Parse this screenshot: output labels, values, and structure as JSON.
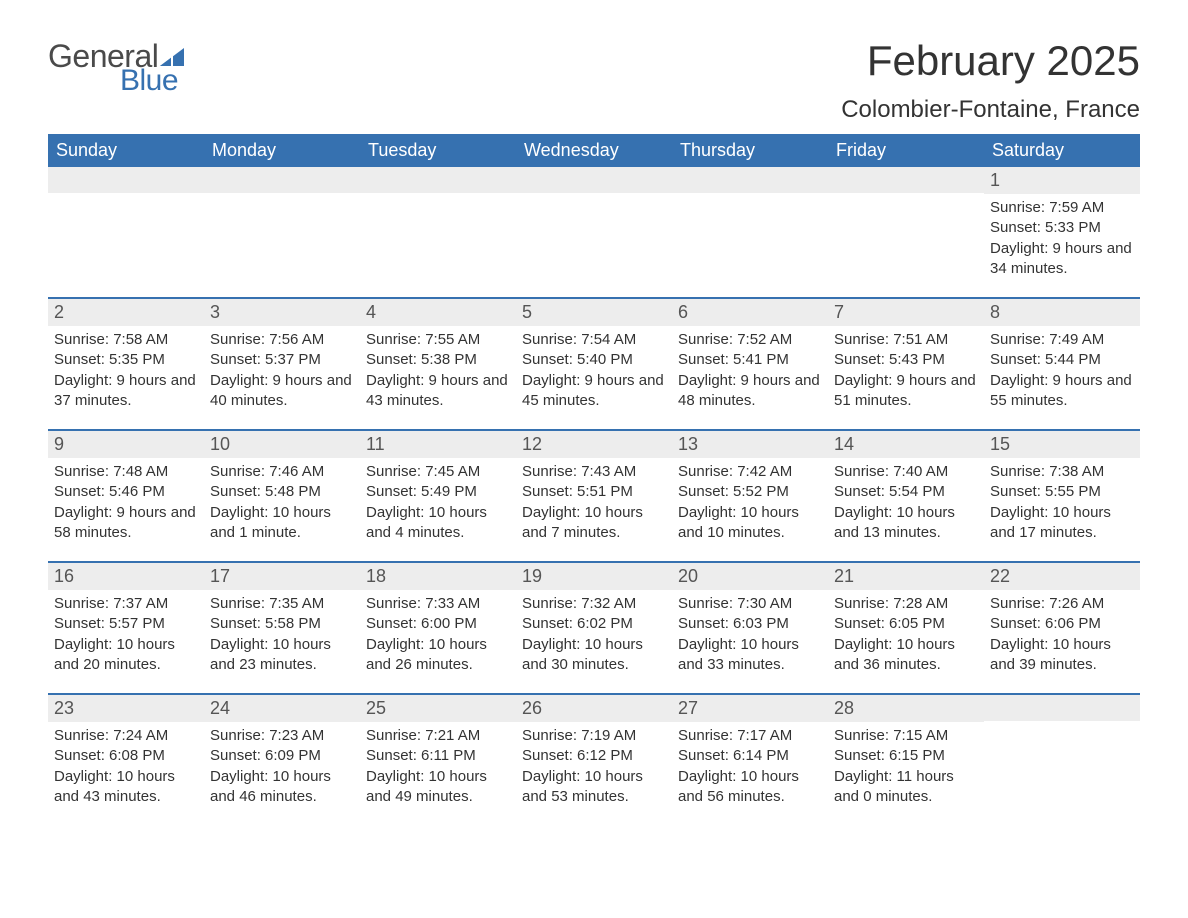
{
  "brand": {
    "word1": "General",
    "word2": "Blue",
    "word1_color": "#4a4a4a",
    "word2_color": "#3671b0",
    "flag_color": "#3671b0"
  },
  "title": "February 2025",
  "location": "Colombier-Fontaine, France",
  "colors": {
    "header_bg": "#3671b0",
    "header_text": "#ffffff",
    "band_bg": "#ededed",
    "text": "#333333",
    "rule": "#3671b0",
    "page_bg": "#ffffff"
  },
  "typography": {
    "title_fontsize": 42,
    "location_fontsize": 24,
    "dow_fontsize": 18,
    "daynum_fontsize": 18,
    "details_fontsize": 15
  },
  "days_of_week": [
    "Sunday",
    "Monday",
    "Tuesday",
    "Wednesday",
    "Thursday",
    "Friday",
    "Saturday"
  ],
  "weeks": [
    [
      {
        "blank": true
      },
      {
        "blank": true
      },
      {
        "blank": true
      },
      {
        "blank": true
      },
      {
        "blank": true
      },
      {
        "blank": true
      },
      {
        "day": "1",
        "sunrise": "Sunrise: 7:59 AM",
        "sunset": "Sunset: 5:33 PM",
        "daylight": "Daylight: 9 hours and 34 minutes."
      }
    ],
    [
      {
        "day": "2",
        "sunrise": "Sunrise: 7:58 AM",
        "sunset": "Sunset: 5:35 PM",
        "daylight": "Daylight: 9 hours and 37 minutes."
      },
      {
        "day": "3",
        "sunrise": "Sunrise: 7:56 AM",
        "sunset": "Sunset: 5:37 PM",
        "daylight": "Daylight: 9 hours and 40 minutes."
      },
      {
        "day": "4",
        "sunrise": "Sunrise: 7:55 AM",
        "sunset": "Sunset: 5:38 PM",
        "daylight": "Daylight: 9 hours and 43 minutes."
      },
      {
        "day": "5",
        "sunrise": "Sunrise: 7:54 AM",
        "sunset": "Sunset: 5:40 PM",
        "daylight": "Daylight: 9 hours and 45 minutes."
      },
      {
        "day": "6",
        "sunrise": "Sunrise: 7:52 AM",
        "sunset": "Sunset: 5:41 PM",
        "daylight": "Daylight: 9 hours and 48 minutes."
      },
      {
        "day": "7",
        "sunrise": "Sunrise: 7:51 AM",
        "sunset": "Sunset: 5:43 PM",
        "daylight": "Daylight: 9 hours and 51 minutes."
      },
      {
        "day": "8",
        "sunrise": "Sunrise: 7:49 AM",
        "sunset": "Sunset: 5:44 PM",
        "daylight": "Daylight: 9 hours and 55 minutes."
      }
    ],
    [
      {
        "day": "9",
        "sunrise": "Sunrise: 7:48 AM",
        "sunset": "Sunset: 5:46 PM",
        "daylight": "Daylight: 9 hours and 58 minutes."
      },
      {
        "day": "10",
        "sunrise": "Sunrise: 7:46 AM",
        "sunset": "Sunset: 5:48 PM",
        "daylight": "Daylight: 10 hours and 1 minute."
      },
      {
        "day": "11",
        "sunrise": "Sunrise: 7:45 AM",
        "sunset": "Sunset: 5:49 PM",
        "daylight": "Daylight: 10 hours and 4 minutes."
      },
      {
        "day": "12",
        "sunrise": "Sunrise: 7:43 AM",
        "sunset": "Sunset: 5:51 PM",
        "daylight": "Daylight: 10 hours and 7 minutes."
      },
      {
        "day": "13",
        "sunrise": "Sunrise: 7:42 AM",
        "sunset": "Sunset: 5:52 PM",
        "daylight": "Daylight: 10 hours and 10 minutes."
      },
      {
        "day": "14",
        "sunrise": "Sunrise: 7:40 AM",
        "sunset": "Sunset: 5:54 PM",
        "daylight": "Daylight: 10 hours and 13 minutes."
      },
      {
        "day": "15",
        "sunrise": "Sunrise: 7:38 AM",
        "sunset": "Sunset: 5:55 PM",
        "daylight": "Daylight: 10 hours and 17 minutes."
      }
    ],
    [
      {
        "day": "16",
        "sunrise": "Sunrise: 7:37 AM",
        "sunset": "Sunset: 5:57 PM",
        "daylight": "Daylight: 10 hours and 20 minutes."
      },
      {
        "day": "17",
        "sunrise": "Sunrise: 7:35 AM",
        "sunset": "Sunset: 5:58 PM",
        "daylight": "Daylight: 10 hours and 23 minutes."
      },
      {
        "day": "18",
        "sunrise": "Sunrise: 7:33 AM",
        "sunset": "Sunset: 6:00 PM",
        "daylight": "Daylight: 10 hours and 26 minutes."
      },
      {
        "day": "19",
        "sunrise": "Sunrise: 7:32 AM",
        "sunset": "Sunset: 6:02 PM",
        "daylight": "Daylight: 10 hours and 30 minutes."
      },
      {
        "day": "20",
        "sunrise": "Sunrise: 7:30 AM",
        "sunset": "Sunset: 6:03 PM",
        "daylight": "Daylight: 10 hours and 33 minutes."
      },
      {
        "day": "21",
        "sunrise": "Sunrise: 7:28 AM",
        "sunset": "Sunset: 6:05 PM",
        "daylight": "Daylight: 10 hours and 36 minutes."
      },
      {
        "day": "22",
        "sunrise": "Sunrise: 7:26 AM",
        "sunset": "Sunset: 6:06 PM",
        "daylight": "Daylight: 10 hours and 39 minutes."
      }
    ],
    [
      {
        "day": "23",
        "sunrise": "Sunrise: 7:24 AM",
        "sunset": "Sunset: 6:08 PM",
        "daylight": "Daylight: 10 hours and 43 minutes."
      },
      {
        "day": "24",
        "sunrise": "Sunrise: 7:23 AM",
        "sunset": "Sunset: 6:09 PM",
        "daylight": "Daylight: 10 hours and 46 minutes."
      },
      {
        "day": "25",
        "sunrise": "Sunrise: 7:21 AM",
        "sunset": "Sunset: 6:11 PM",
        "daylight": "Daylight: 10 hours and 49 minutes."
      },
      {
        "day": "26",
        "sunrise": "Sunrise: 7:19 AM",
        "sunset": "Sunset: 6:12 PM",
        "daylight": "Daylight: 10 hours and 53 minutes."
      },
      {
        "day": "27",
        "sunrise": "Sunrise: 7:17 AM",
        "sunset": "Sunset: 6:14 PM",
        "daylight": "Daylight: 10 hours and 56 minutes."
      },
      {
        "day": "28",
        "sunrise": "Sunrise: 7:15 AM",
        "sunset": "Sunset: 6:15 PM",
        "daylight": "Daylight: 11 hours and 0 minutes."
      },
      {
        "blank": true
      }
    ]
  ]
}
